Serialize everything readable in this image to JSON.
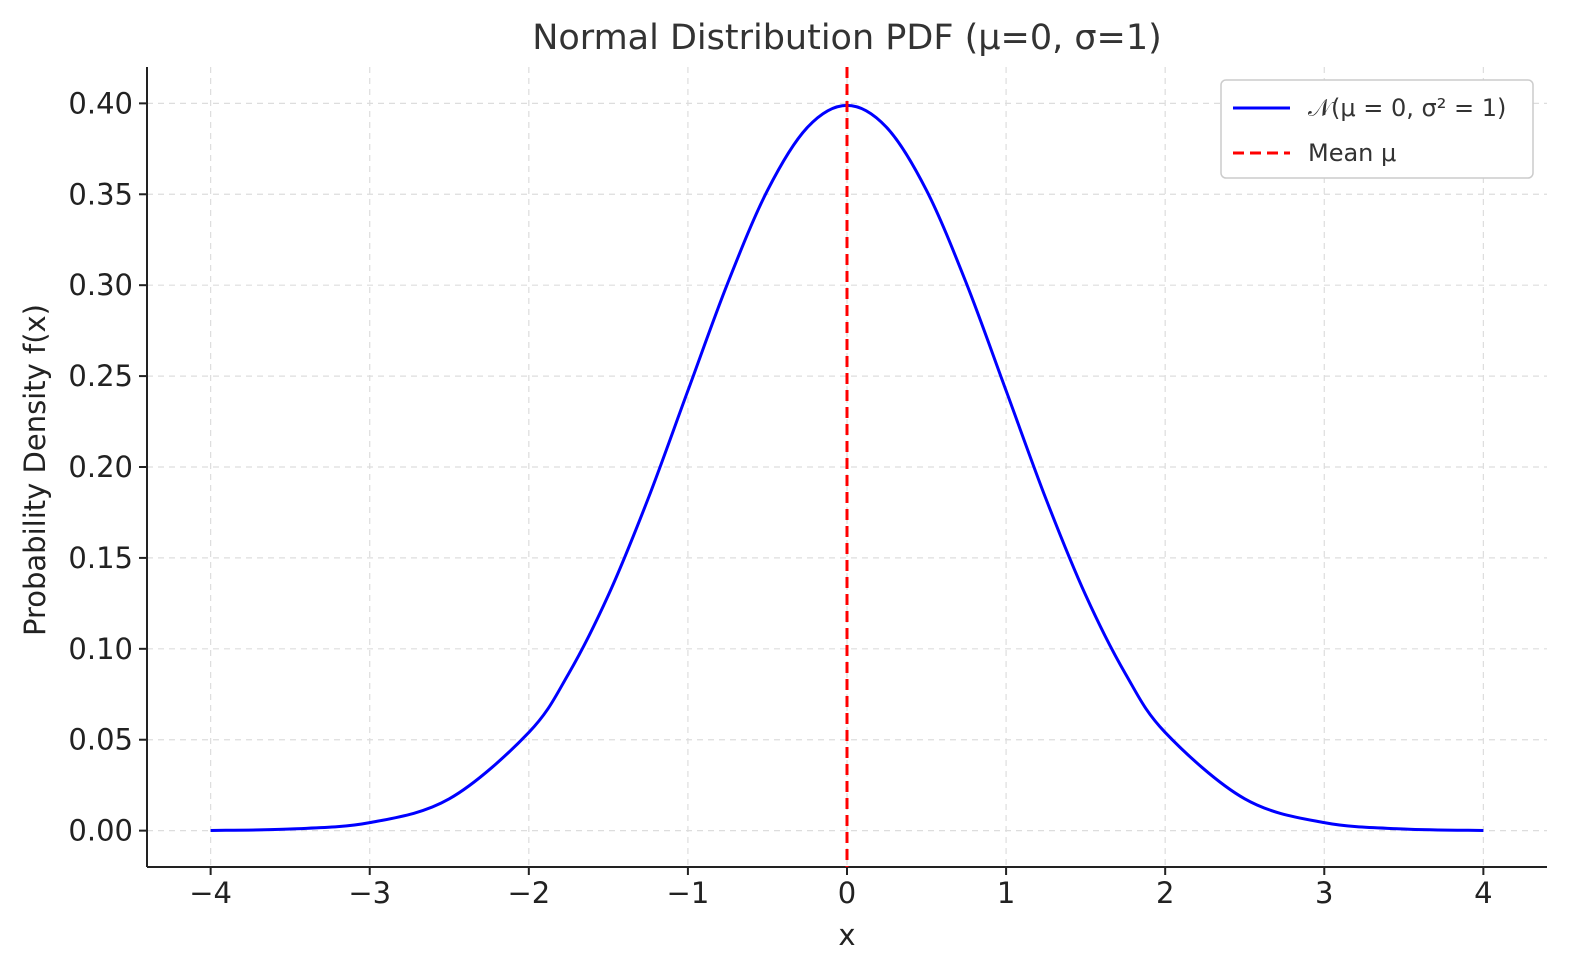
{
  "chart_data": {
    "type": "line",
    "title": "Normal Distribution PDF (μ=0, σ=1)",
    "xlabel": "x",
    "ylabel": "Probability Density f(x)",
    "xlim": [
      -4.4,
      4.4
    ],
    "ylim": [
      -0.02,
      0.42
    ],
    "xticks": [
      -4,
      -3,
      -2,
      -1,
      0,
      1,
      2,
      3,
      4
    ],
    "xtick_labels": [
      "−4",
      "−3",
      "−2",
      "−1",
      "0",
      "1",
      "2",
      "3",
      "4"
    ],
    "yticks": [
      0,
      0.05,
      0.1,
      0.15,
      0.2,
      0.25,
      0.3,
      0.35,
      0.4
    ],
    "ytick_labels": [
      "0.00",
      "0.05",
      "0.10",
      "0.15",
      "0.20",
      "0.25",
      "0.30",
      "0.35",
      "0.40"
    ],
    "grid": true,
    "legend_position": "top-right",
    "series": [
      {
        "name": "𝒩(μ = 0, σ² = 1)",
        "color": "#0000ff",
        "style": "solid",
        "x": [
          -4,
          -3.5,
          -3,
          -2.5,
          -2,
          -1.75,
          -1.5,
          -1.25,
          -1,
          -0.75,
          -0.5,
          -0.25,
          0,
          0.25,
          0.5,
          0.75,
          1,
          1.25,
          1.5,
          1.75,
          2,
          2.5,
          3,
          3.5,
          4
        ],
        "y": [
          0.0001,
          0.0009,
          0.0044,
          0.0175,
          0.054,
          0.0863,
          0.1295,
          0.1826,
          0.242,
          0.3011,
          0.3521,
          0.3867,
          0.3989,
          0.3867,
          0.3521,
          0.3011,
          0.242,
          0.1826,
          0.1295,
          0.0863,
          0.054,
          0.0175,
          0.0044,
          0.0009,
          0.0001
        ]
      },
      {
        "name": "Mean μ",
        "color": "#ff0000",
        "style": "dashed",
        "vertical_line_x": 0
      }
    ]
  }
}
